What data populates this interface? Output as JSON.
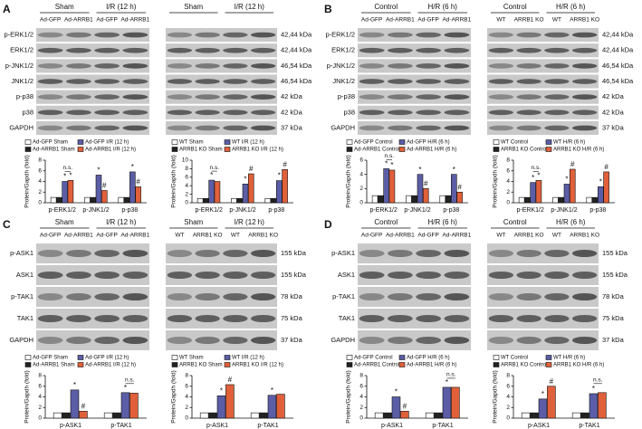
{
  "panels": [
    {
      "letter": "A",
      "rows": [
        "p-ERK1/2",
        "ERK1/2",
        "p-JNK1/2",
        "JNK1/2",
        "p-p38",
        "p38",
        "GAPDH"
      ],
      "kda": [
        "42,44 kDa",
        "42,44 kDa",
        "46,54 kDa",
        "46,54 kDa",
        "42 kDa",
        "42 kDa",
        "37 kDa"
      ],
      "blots": [
        {
          "groups": [
            "Sham",
            "I/R (12 h)"
          ],
          "lanes": [
            "Ad-GFP",
            "Ad-ARRB1",
            "Ad-GFP",
            "Ad-ARRB1"
          ]
        },
        {
          "groups": [
            "Sham",
            "I/R (12 h)"
          ]
        }
      ]
    },
    {
      "letter": "B",
      "rows": [
        "p-ERK1/2",
        "ERK1/2",
        "p-JNK1/2",
        "JNK1/2",
        "p-p38",
        "p38",
        "GAPDH"
      ],
      "kda": [
        "42,44 kDa",
        "42,44 kDa",
        "46,54 kDa",
        "46,54 kDa",
        "42 kDa",
        "42 kDa",
        "37 kDa"
      ],
      "blots": [
        {
          "groups": [
            "Control",
            "H/R (6 h)"
          ],
          "lanes": [
            "Ad-GFP",
            "Ad-ARRB1",
            "Ad-GFP",
            "Ad-ARRB1"
          ]
        },
        {
          "groups": [
            "Control",
            "H/R (6 h)"
          ],
          "lanes": [
            "WT",
            "ARRB1 KO",
            "WT",
            "ARRB1 KO"
          ]
        }
      ]
    },
    {
      "letter": "C",
      "rows": [
        "p-ASK1",
        "ASK1",
        "p-TAK1",
        "TAK1",
        "GAPDH"
      ],
      "kda": [
        "155 kDa",
        "155 kDa",
        "78 kDa",
        "75 kDa",
        "37 kDa"
      ],
      "blots": [
        {
          "groups": [
            "Sham",
            "I/R (12 h)"
          ],
          "lanes": [
            "Ad-GFP",
            "Ad-ARRB1",
            "Ad-GFP",
            "Ad-ARRB1"
          ]
        },
        {
          "groups": [
            "Sham",
            "I/R (12 h)"
          ],
          "lanes": [
            "WT",
            "ARRB1 KO",
            "WT",
            "ARRB1 KO"
          ]
        }
      ]
    },
    {
      "letter": "D",
      "rows": [
        "p-ASK1",
        "ASK1",
        "p-TAK1",
        "TAK1",
        "GAPDH"
      ],
      "kda": [
        "155 kDa",
        "155 kDa",
        "78 kDa",
        "75 kDa",
        "37 kDa"
      ],
      "blots": [
        {
          "groups": [
            "Control",
            "H/R (6 h)"
          ],
          "lanes": [
            "Ad-GFP",
            "Ad-ARRB1",
            "Ad-GFP",
            "Ad-ARRB1"
          ]
        },
        {
          "groups": [
            "Control",
            "H/R (6 h)"
          ],
          "lanes": [
            "WT",
            "ARRB1 KO",
            "WT",
            "ARRB1 KO"
          ]
        }
      ]
    }
  ],
  "chart_data": [
    {
      "type": "bar",
      "ylabel": "Protein/Gapdh (fold)",
      "categories": [
        "p-ERK1/2",
        "p-JNK1/2",
        "p-p38"
      ],
      "ylim": [
        0,
        8
      ],
      "yticks": [
        0,
        2,
        4,
        6,
        8
      ],
      "brackets": [
        "n.s.",
        null,
        null
      ],
      "series": [
        {
          "name": "Ad-GFP Sham",
          "color": "#ffffff",
          "values": [
            1,
            1,
            1
          ]
        },
        {
          "name": "Ad-ARRB1 Sham",
          "color": "#222222",
          "values": [
            1,
            1,
            1
          ]
        },
        {
          "name": "Ad-GFP I/R (12 h)",
          "color": "#5b5ea6",
          "values": [
            4,
            5.2,
            5.8
          ],
          "labels": [
            "*",
            "*",
            "*"
          ]
        },
        {
          "name": "Ad-ARRB1 I/R (12 h)",
          "color": "#e0603a",
          "values": [
            4.2,
            2.3,
            3
          ],
          "labels": [
            "*",
            "#",
            "#"
          ]
        }
      ]
    },
    {
      "type": "bar",
      "ylabel": "Protein/Gapdh (fold)",
      "categories": [
        "p-ERK1/2",
        "p-JNK1/2",
        "p-p38"
      ],
      "ylim": [
        0,
        10
      ],
      "yticks": [
        0,
        2,
        4,
        6,
        8,
        10
      ],
      "brackets": [
        "n.s.",
        null,
        null
      ],
      "series": [
        {
          "name": "WT Sham",
          "color": "#ffffff",
          "values": [
            1,
            1,
            1
          ]
        },
        {
          "name": "ARRB1 KO Sham",
          "color": "#222222",
          "values": [
            1,
            1,
            1
          ]
        },
        {
          "name": "WT I/R (12 h)",
          "color": "#5b5ea6",
          "values": [
            5.3,
            4.4,
            5.2
          ],
          "labels": [
            "*",
            "*",
            "*"
          ]
        },
        {
          "name": "ARRB1 KO I/R (12 h)",
          "color": "#e0603a",
          "values": [
            5,
            6.8,
            7.8
          ],
          "labels": [
            null,
            "#",
            "#"
          ]
        }
      ]
    },
    {
      "type": "bar",
      "ylabel": "Protein/Gapdh (fold)",
      "categories": [
        "p-ERK1/2",
        "p-JNK1/2",
        "p-p38"
      ],
      "ylim": [
        0,
        6
      ],
      "yticks": [
        0,
        2,
        4,
        6
      ],
      "brackets": [
        "n.s.",
        null,
        null
      ],
      "series": [
        {
          "name": "Ad-GFP Control",
          "color": "#ffffff",
          "values": [
            1,
            1,
            1
          ]
        },
        {
          "name": "Ad-ARRB1 Control",
          "color": "#222222",
          "values": [
            1,
            1,
            1
          ]
        },
        {
          "name": "Ad-GFP H/R (6 h)",
          "color": "#5b5ea6",
          "values": [
            4.8,
            4,
            4
          ],
          "labels": [
            "*",
            "*",
            "*"
          ]
        },
        {
          "name": "Ad-ARRB1 H/R (6 h)",
          "color": "#e0603a",
          "values": [
            4.6,
            2,
            1.5
          ],
          "labels": [
            "*",
            "#",
            "#"
          ]
        }
      ]
    },
    {
      "type": "bar",
      "ylabel": "Protein/Gapdh (fold)",
      "categories": [
        "p-ERK1/2",
        "p-JNK1/2",
        "p-p38"
      ],
      "ylim": [
        0,
        8
      ],
      "yticks": [
        0,
        2,
        4,
        6,
        8
      ],
      "brackets": [
        "n.s.",
        null,
        null
      ],
      "series": [
        {
          "name": "WT Control",
          "color": "#ffffff",
          "values": [
            1,
            1,
            1
          ]
        },
        {
          "name": "ARRB1 KO Control",
          "color": "#222222",
          "values": [
            1,
            1,
            1
          ]
        },
        {
          "name": "WT H/R (6 h)",
          "color": "#5b5ea6",
          "values": [
            3.8,
            3.5,
            3
          ],
          "labels": [
            "*",
            "*",
            "*"
          ]
        },
        {
          "name": "ARRB1 KO H/R (6 h)",
          "color": "#e0603a",
          "values": [
            4.2,
            6.3,
            5.8
          ],
          "labels": [
            "*",
            "#",
            "#"
          ]
        }
      ]
    },
    {
      "type": "bar",
      "ylabel": "Protein/Gapdh (fold)",
      "categories": [
        "p-ASK1",
        "p-TAK1"
      ],
      "ylim": [
        0,
        8
      ],
      "yticks": [
        0,
        2,
        4,
        6,
        8
      ],
      "brackets": [
        null,
        "n.s."
      ],
      "series": [
        {
          "name": "Ad-GFP Sham",
          "color": "#ffffff",
          "values": [
            1,
            1
          ]
        },
        {
          "name": "Ad-ARRB1 Sham",
          "color": "#222222",
          "values": [
            1,
            1
          ]
        },
        {
          "name": "Ad-GFP I/R (12 h)",
          "color": "#5b5ea6",
          "values": [
            5.3,
            4.8
          ],
          "labels": [
            "*",
            "*"
          ]
        },
        {
          "name": "Ad-ARRB1 I/R (12 h)",
          "color": "#e0603a",
          "values": [
            1.3,
            4.7
          ],
          "labels": [
            "#",
            null
          ]
        }
      ]
    },
    {
      "type": "bar",
      "ylabel": "Protein/Gapdh (fold)",
      "categories": [
        "p-ASK1",
        "p-TAK1"
      ],
      "ylim": [
        0,
        8
      ],
      "yticks": [
        0,
        2,
        4,
        6,
        8
      ],
      "brackets": [
        null,
        null
      ],
      "series": [
        {
          "name": "WT Sham",
          "color": "#ffffff",
          "values": [
            1,
            1
          ]
        },
        {
          "name": "ARRB1 KO Sham",
          "color": "#222222",
          "values": [
            1,
            1
          ]
        },
        {
          "name": "WT I/R (12 h)",
          "color": "#5b5ea6",
          "values": [
            4.2,
            4.3
          ],
          "labels": [
            "*",
            "*"
          ]
        },
        {
          "name": "ARRB1 KO I/R (12 h)",
          "color": "#e0603a",
          "values": [
            6.3,
            4.5
          ],
          "labels": [
            "#",
            null
          ]
        }
      ]
    },
    {
      "type": "bar",
      "ylabel": "Protein/Gapdh (fold)",
      "categories": [
        "p-ASK1",
        "p-TAK1"
      ],
      "ylim": [
        0,
        8
      ],
      "yticks": [
        0,
        2,
        4,
        6,
        8
      ],
      "brackets": [
        null,
        "n.s."
      ],
      "series": [
        {
          "name": "Ad-GFP Control",
          "color": "#ffffff",
          "values": [
            1,
            1
          ]
        },
        {
          "name": "Ad-ARRB1 Control",
          "color": "#222222",
          "values": [
            1,
            1
          ]
        },
        {
          "name": "Ad-GFP H/R (6 h)",
          "color": "#5b5ea6",
          "values": [
            4,
            5.8
          ],
          "labels": [
            "*",
            "*"
          ]
        },
        {
          "name": "Ad-ARRB1 H/R (6 h)",
          "color": "#e0603a",
          "values": [
            1.3,
            5.8
          ],
          "labels": [
            "#",
            null
          ]
        }
      ]
    },
    {
      "type": "bar",
      "ylabel": "Protein/Gapdh (fold)",
      "categories": [
        "p-ASK1",
        "p-TAK1"
      ],
      "ylim": [
        0,
        8
      ],
      "yticks": [
        0,
        2,
        4,
        6,
        8
      ],
      "brackets": [
        null,
        "n.s."
      ],
      "series": [
        {
          "name": "WT Control",
          "color": "#ffffff",
          "values": [
            1,
            1
          ]
        },
        {
          "name": "ARRB1 KO Control",
          "color": "#222222",
          "values": [
            1,
            1
          ]
        },
        {
          "name": "WT H/R (6 h)",
          "color": "#5b5ea6",
          "values": [
            3.6,
            4.6
          ],
          "labels": [
            "*",
            "*"
          ]
        },
        {
          "name": "ARRB1 KO H/R (6 h)",
          "color": "#e0603a",
          "values": [
            6,
            4.8
          ],
          "labels": [
            "#",
            null
          ]
        }
      ]
    }
  ]
}
